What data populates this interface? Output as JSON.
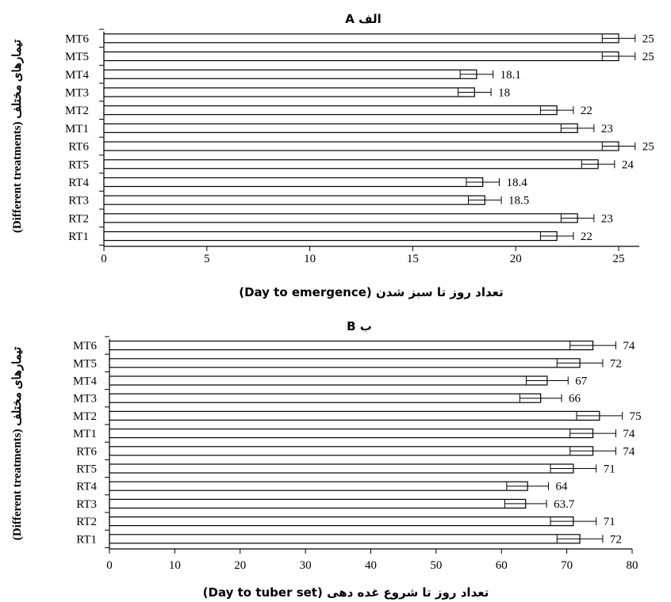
{
  "chart_data": [
    {
      "type": "bar",
      "orientation": "horizontal",
      "title": "الف A",
      "xlabel": "(Day to emergence) تعداد روز تا سبز شدن",
      "ylabel": "(Different treatments) تیمارهای مختلف",
      "categories": [
        "RT1",
        "RT2",
        "RT3",
        "RT4",
        "RT5",
        "RT6",
        "MT1",
        "MT2",
        "MT3",
        "MT4",
        "MT5",
        "MT6"
      ],
      "values": [
        22,
        23,
        18.5,
        18.4,
        24,
        25,
        23,
        22,
        18,
        18.1,
        25,
        25
      ],
      "value_labels": [
        "22",
        "23",
        "18.5",
        "18.4",
        "24",
        "25",
        "23",
        "22",
        "18",
        "18.1",
        "25",
        "25"
      ],
      "errors": [
        0.8,
        0.8,
        0.8,
        0.8,
        0.8,
        0.8,
        0.8,
        0.8,
        0.8,
        0.8,
        0.8,
        0.8
      ],
      "xlim": [
        0,
        26
      ],
      "xticks": [
        0,
        5,
        10,
        15,
        20,
        25
      ],
      "grid": false,
      "legend": "none"
    },
    {
      "type": "bar",
      "orientation": "horizontal",
      "title": "ب B",
      "xlabel": "(Day to tuber set) تعداد روز تا شروع غده دهی",
      "ylabel": "(Different treatments) تیمارهای مختلف",
      "categories": [
        "RT1",
        "RT2",
        "RT3",
        "RT4",
        "RT5",
        "RT6",
        "MT1",
        "MT2",
        "MT3",
        "MT4",
        "MT5",
        "MT6"
      ],
      "values": [
        72,
        71,
        63.7,
        64,
        71,
        74,
        74,
        75,
        66,
        67,
        72,
        74
      ],
      "value_labels": [
        "72",
        "71",
        "63.7",
        "64",
        "71",
        "74",
        "74",
        "75",
        "66",
        "67",
        "72",
        "74"
      ],
      "errors": [
        3.5,
        3.5,
        3.2,
        3.2,
        3.5,
        3.5,
        3.5,
        3.5,
        3.2,
        3.2,
        3.5,
        3.5
      ],
      "xlim": [
        0,
        80
      ],
      "xticks": [
        0,
        10,
        20,
        30,
        40,
        50,
        60,
        70,
        80
      ],
      "grid": false,
      "legend": "none"
    }
  ]
}
